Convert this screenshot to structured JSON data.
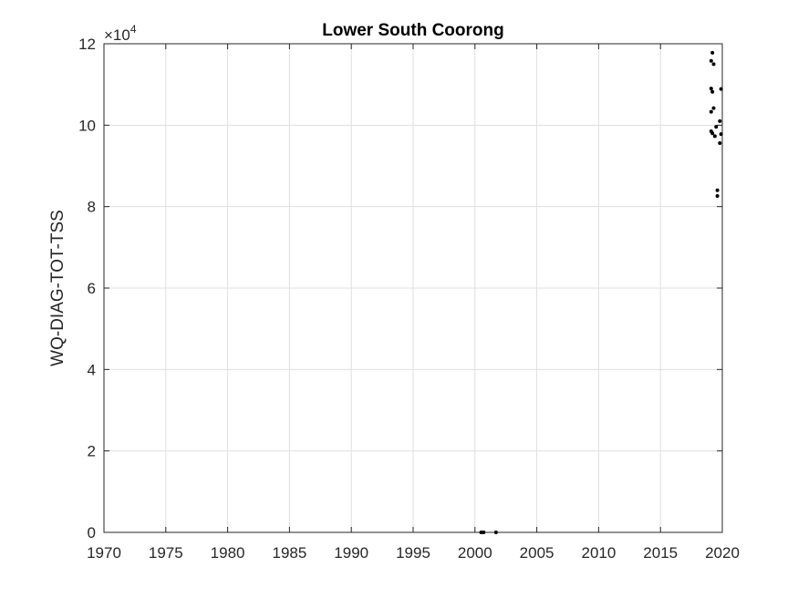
{
  "chart_data": {
    "type": "scatter",
    "title": "Lower South Coorong",
    "xlabel": "",
    "ylabel": "WQ-DIAG-TOT-TSS",
    "xlim": [
      1970,
      2020
    ],
    "ylim": [
      0,
      120000
    ],
    "y_display_scale": 10000,
    "y_exponent_base": "×10",
    "y_exponent_power": "4",
    "x_ticks": [
      1970,
      1975,
      1980,
      1985,
      1990,
      1995,
      2000,
      2005,
      2010,
      2015,
      2020
    ],
    "x_tick_labels": [
      "1970",
      "1975",
      "1980",
      "1985",
      "1990",
      "1995",
      "2000",
      "2005",
      "2010",
      "2015",
      "2020"
    ],
    "y_ticks": [
      0,
      20000,
      40000,
      60000,
      80000,
      100000,
      120000
    ],
    "y_tick_labels": [
      "0",
      "2",
      "4",
      "6",
      "8",
      "10",
      "12"
    ],
    "grid": true,
    "marker_color": "#000000",
    "grid_color": "#dfdfdf",
    "axis_color": "#262626",
    "series": [
      {
        "points": [
          {
            "x": 2000.5,
            "y": 0
          },
          {
            "x": 2000.7,
            "y": 0
          },
          {
            "x": 2001.7,
            "y": 0
          },
          {
            "x": 2019.2,
            "y": 117800
          },
          {
            "x": 2019.1,
            "y": 115800
          },
          {
            "x": 2019.3,
            "y": 115000
          },
          {
            "x": 2019.1,
            "y": 109000
          },
          {
            "x": 2019.2,
            "y": 108200
          },
          {
            "x": 2019.9,
            "y": 108900
          },
          {
            "x": 2019.3,
            "y": 104200
          },
          {
            "x": 2019.1,
            "y": 103300
          },
          {
            "x": 2019.8,
            "y": 101000
          },
          {
            "x": 2019.5,
            "y": 99600
          },
          {
            "x": 2019.1,
            "y": 98500
          },
          {
            "x": 2019.2,
            "y": 98000
          },
          {
            "x": 2019.9,
            "y": 97800
          },
          {
            "x": 2019.4,
            "y": 97300
          },
          {
            "x": 2019.8,
            "y": 95600
          },
          {
            "x": 2019.6,
            "y": 84000
          },
          {
            "x": 2019.6,
            "y": 82600
          }
        ]
      }
    ]
  }
}
